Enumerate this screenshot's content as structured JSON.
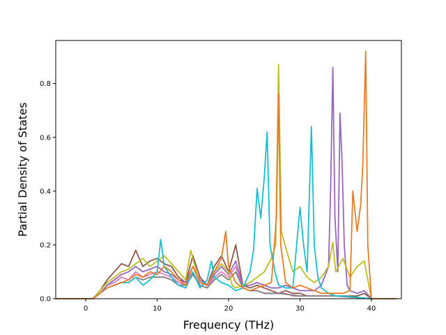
{
  "chart_data": {
    "type": "line",
    "title": "",
    "xlabel": "Frequency (THz)",
    "ylabel": "Partial Density of States",
    "xlim": [
      -4.2,
      44.2
    ],
    "ylim": [
      0,
      0.96
    ],
    "xticks": [
      0,
      10,
      20,
      30,
      40
    ],
    "yticks": [
      0.0,
      0.2,
      0.4,
      0.6,
      0.8
    ],
    "ytick_labels": [
      "0.0",
      "0.2",
      "0.4",
      "0.6",
      "0.8"
    ],
    "grid": false,
    "legend": "none",
    "series": [
      {
        "color": "#8c564b",
        "points": [
          [
            -4.2,
            0
          ],
          [
            1,
            0
          ],
          [
            2,
            0.03
          ],
          [
            3,
            0.07
          ],
          [
            4,
            0.1
          ],
          [
            5,
            0.13
          ],
          [
            6,
            0.12
          ],
          [
            7,
            0.18
          ],
          [
            8,
            0.12
          ],
          [
            9,
            0.14
          ],
          [
            10,
            0.15
          ],
          [
            11,
            0.13
          ],
          [
            12,
            0.12
          ],
          [
            13,
            0.08
          ],
          [
            14,
            0.06
          ],
          [
            15,
            0.16
          ],
          [
            16,
            0.08
          ],
          [
            17,
            0.05
          ],
          [
            18,
            0.12
          ],
          [
            19,
            0.16
          ],
          [
            20,
            0.1
          ],
          [
            21,
            0.2
          ],
          [
            22,
            0.05
          ],
          [
            23,
            0.04
          ],
          [
            24,
            0.05
          ],
          [
            25,
            0.04
          ],
          [
            26,
            0.03
          ],
          [
            27,
            0.02
          ],
          [
            28,
            0.03
          ],
          [
            29,
            0.02
          ],
          [
            30,
            0.02
          ],
          [
            31,
            0.01
          ],
          [
            32,
            0.01
          ],
          [
            33,
            0.01
          ],
          [
            34,
            0.01
          ],
          [
            35,
            0.01
          ],
          [
            36,
            0.01
          ],
          [
            38,
            0.01
          ],
          [
            39,
            0.02
          ],
          [
            40,
            0
          ],
          [
            43.5,
            0
          ]
        ]
      },
      {
        "color": "#e377c2",
        "points": [
          [
            -4.2,
            0
          ],
          [
            1,
            0
          ],
          [
            2,
            0.02
          ],
          [
            3,
            0.05
          ],
          [
            4,
            0.06
          ],
          [
            5,
            0.08
          ],
          [
            6,
            0.07
          ],
          [
            7,
            0.1
          ],
          [
            8,
            0.08
          ],
          [
            9,
            0.09
          ],
          [
            10,
            0.1
          ],
          [
            11,
            0.09
          ],
          [
            12,
            0.08
          ],
          [
            13,
            0.06
          ],
          [
            14,
            0.05
          ],
          [
            15,
            0.1
          ],
          [
            16,
            0.05
          ],
          [
            17,
            0.04
          ],
          [
            18,
            0.08
          ],
          [
            19,
            0.1
          ],
          [
            20,
            0.08
          ],
          [
            21,
            0.12
          ],
          [
            22,
            0.04
          ],
          [
            23,
            0.03
          ],
          [
            24,
            0.03
          ],
          [
            25,
            0.02
          ],
          [
            26,
            0.02
          ],
          [
            27,
            0.02
          ],
          [
            28,
            0.02
          ],
          [
            29,
            0.01
          ],
          [
            30,
            0.01
          ],
          [
            35,
            0.01
          ],
          [
            40,
            0
          ],
          [
            43.5,
            0
          ]
        ]
      },
      {
        "color": "#7f7f7f",
        "points": [
          [
            -4.2,
            0
          ],
          [
            1,
            0
          ],
          [
            2,
            0.02
          ],
          [
            3,
            0.04
          ],
          [
            4,
            0.05
          ],
          [
            5,
            0.06
          ],
          [
            6,
            0.06
          ],
          [
            7,
            0.08
          ],
          [
            8,
            0.07
          ],
          [
            9,
            0.08
          ],
          [
            10,
            0.08
          ],
          [
            11,
            0.08
          ],
          [
            12,
            0.07
          ],
          [
            13,
            0.05
          ],
          [
            14,
            0.05
          ],
          [
            15,
            0.09
          ],
          [
            16,
            0.05
          ],
          [
            17,
            0.04
          ],
          [
            18,
            0.07
          ],
          [
            19,
            0.09
          ],
          [
            20,
            0.07
          ],
          [
            21,
            0.1
          ],
          [
            22,
            0.04
          ],
          [
            23,
            0.03
          ],
          [
            24,
            0.03
          ],
          [
            25,
            0.02
          ],
          [
            27,
            0.02
          ],
          [
            30,
            0.01
          ],
          [
            35,
            0.01
          ],
          [
            40,
            0
          ],
          [
            43.5,
            0
          ]
        ]
      },
      {
        "color": "#9467bd",
        "points": [
          [
            -4.2,
            0
          ],
          [
            1,
            0
          ],
          [
            2,
            0.02
          ],
          [
            3,
            0.05
          ],
          [
            4,
            0.07
          ],
          [
            5,
            0.09
          ],
          [
            6,
            0.1
          ],
          [
            7,
            0.12
          ],
          [
            8,
            0.1
          ],
          [
            9,
            0.11
          ],
          [
            10,
            0.12
          ],
          [
            11,
            0.1
          ],
          [
            12,
            0.09
          ],
          [
            13,
            0.07
          ],
          [
            14,
            0.06
          ],
          [
            15,
            0.12
          ],
          [
            16,
            0.07
          ],
          [
            17,
            0.05
          ],
          [
            18,
            0.09
          ],
          [
            19,
            0.12
          ],
          [
            20,
            0.09
          ],
          [
            21,
            0.14
          ],
          [
            22,
            0.05
          ],
          [
            23,
            0.05
          ],
          [
            24,
            0.06
          ],
          [
            25,
            0.05
          ],
          [
            26,
            0.04
          ],
          [
            27,
            0.04
          ],
          [
            28,
            0.05
          ],
          [
            29,
            0.04
          ],
          [
            30,
            0.03
          ],
          [
            31,
            0.03
          ],
          [
            32,
            0.03
          ],
          [
            33,
            0.05
          ],
          [
            34,
            0.12
          ],
          [
            34.3,
            0.42
          ],
          [
            34.6,
            0.86
          ],
          [
            34.9,
            0.3
          ],
          [
            35.3,
            0.1
          ],
          [
            35.6,
            0.69
          ],
          [
            35.9,
            0.5
          ],
          [
            36.2,
            0.2
          ],
          [
            36.6,
            0.05
          ],
          [
            37,
            0.03
          ],
          [
            38,
            0.02
          ],
          [
            39,
            0.03
          ],
          [
            40,
            0
          ],
          [
            43.5,
            0
          ]
        ]
      },
      {
        "color": "#bcbd22",
        "points": [
          [
            -4.2,
            0
          ],
          [
            1,
            0
          ],
          [
            2,
            0.03
          ],
          [
            3,
            0.06
          ],
          [
            4,
            0.08
          ],
          [
            5,
            0.1
          ],
          [
            6,
            0.11
          ],
          [
            7,
            0.13
          ],
          [
            8,
            0.15
          ],
          [
            9,
            0.12
          ],
          [
            10,
            0.14
          ],
          [
            11,
            0.16
          ],
          [
            12,
            0.13
          ],
          [
            13,
            0.1
          ],
          [
            14,
            0.07
          ],
          [
            14.7,
            0.18
          ],
          [
            15.5,
            0.1
          ],
          [
            16,
            0.06
          ],
          [
            17,
            0.05
          ],
          [
            18,
            0.1
          ],
          [
            19,
            0.13
          ],
          [
            20,
            0.1
          ],
          [
            20.5,
            0.05
          ],
          [
            21,
            0.04
          ],
          [
            22,
            0.05
          ],
          [
            23,
            0.06
          ],
          [
            24,
            0.08
          ],
          [
            25,
            0.1
          ],
          [
            26,
            0.15
          ],
          [
            26.6,
            0.2
          ],
          [
            27,
            0.87
          ],
          [
            27.4,
            0.25
          ],
          [
            28,
            0.19
          ],
          [
            29,
            0.1
          ],
          [
            30,
            0.12
          ],
          [
            31,
            0.08
          ],
          [
            32,
            0.06
          ],
          [
            33,
            0.08
          ],
          [
            34,
            0.12
          ],
          [
            34.6,
            0.21
          ],
          [
            35,
            0.1
          ],
          [
            36,
            0.15
          ],
          [
            37,
            0.08
          ],
          [
            38,
            0.12
          ],
          [
            39,
            0.14
          ],
          [
            40,
            0
          ],
          [
            43.5,
            0
          ]
        ]
      },
      {
        "color": "#17becf",
        "points": [
          [
            -4.2,
            0
          ],
          [
            1,
            0
          ],
          [
            2,
            0.02
          ],
          [
            3,
            0.04
          ],
          [
            4,
            0.05
          ],
          [
            5,
            0.06
          ],
          [
            6,
            0.06
          ],
          [
            7,
            0.08
          ],
          [
            8,
            0.05
          ],
          [
            9,
            0.07
          ],
          [
            10,
            0.1
          ],
          [
            10.5,
            0.22
          ],
          [
            11,
            0.12
          ],
          [
            12,
            0.08
          ],
          [
            13,
            0.05
          ],
          [
            14,
            0.04
          ],
          [
            15,
            0.1
          ],
          [
            16,
            0.04
          ],
          [
            17,
            0.07
          ],
          [
            17.6,
            0.14
          ],
          [
            18,
            0.08
          ],
          [
            19,
            0.06
          ],
          [
            20,
            0.05
          ],
          [
            21,
            0.03
          ],
          [
            22,
            0.04
          ],
          [
            23,
            0.1
          ],
          [
            23.5,
            0.18
          ],
          [
            24,
            0.41
          ],
          [
            24.5,
            0.3
          ],
          [
            25,
            0.45
          ],
          [
            25.4,
            0.62
          ],
          [
            25.8,
            0.2
          ],
          [
            26.5,
            0.1
          ],
          [
            27,
            0.05
          ],
          [
            28,
            0.04
          ],
          [
            29,
            0.04
          ],
          [
            30,
            0.34
          ],
          [
            30.5,
            0.2
          ],
          [
            31,
            0.1
          ],
          [
            31.6,
            0.64
          ],
          [
            32,
            0.2
          ],
          [
            32.5,
            0.08
          ],
          [
            33,
            0.04
          ],
          [
            34,
            0.02
          ],
          [
            35,
            0.01
          ],
          [
            36,
            0.01
          ],
          [
            40,
            0
          ],
          [
            43.5,
            0
          ]
        ]
      },
      {
        "color": "#e87b24",
        "points": [
          [
            -4.2,
            0
          ],
          [
            1,
            0
          ],
          [
            2,
            0.02
          ],
          [
            3,
            0.04
          ],
          [
            4,
            0.05
          ],
          [
            5,
            0.06
          ],
          [
            6,
            0.07
          ],
          [
            7,
            0.09
          ],
          [
            8,
            0.08
          ],
          [
            9,
            0.1
          ],
          [
            10,
            0.09
          ],
          [
            11,
            0.12
          ],
          [
            12,
            0.1
          ],
          [
            13,
            0.07
          ],
          [
            14,
            0.05
          ],
          [
            15,
            0.12
          ],
          [
            16,
            0.06
          ],
          [
            17,
            0.05
          ],
          [
            18,
            0.1
          ],
          [
            19,
            0.15
          ],
          [
            19.6,
            0.25
          ],
          [
            20,
            0.12
          ],
          [
            21,
            0.06
          ],
          [
            22,
            0.04
          ],
          [
            23,
            0.03
          ],
          [
            24,
            0.04
          ],
          [
            25,
            0.05
          ],
          [
            26,
            0.06
          ],
          [
            26.7,
            0.3
          ],
          [
            27,
            0.76
          ],
          [
            27.3,
            0.2
          ],
          [
            28,
            0.06
          ],
          [
            29,
            0.04
          ],
          [
            30,
            0.05
          ],
          [
            31,
            0.04
          ],
          [
            32,
            0.03
          ],
          [
            33,
            0.02
          ],
          [
            34,
            0.02
          ],
          [
            35,
            0.02
          ],
          [
            36,
            0.02
          ],
          [
            37,
            0.03
          ],
          [
            37.4,
            0.4
          ],
          [
            37.8,
            0.3
          ],
          [
            38,
            0.25
          ],
          [
            38.5,
            0.35
          ],
          [
            38.8,
            0.5
          ],
          [
            39.2,
            0.92
          ],
          [
            39.5,
            0.2
          ],
          [
            40,
            0
          ],
          [
            43.5,
            0
          ]
        ]
      }
    ]
  }
}
